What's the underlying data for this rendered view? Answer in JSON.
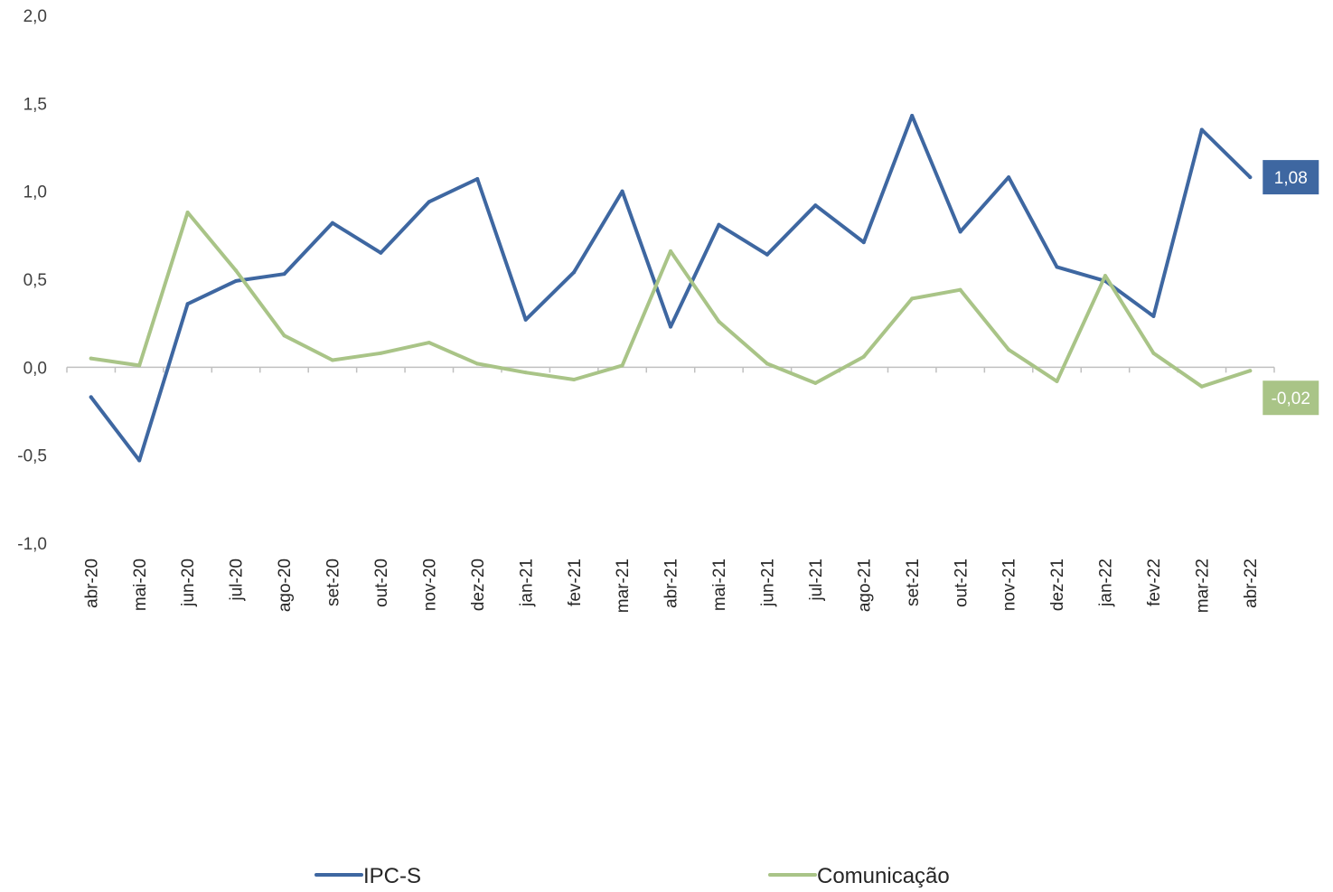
{
  "chart_data": {
    "type": "line",
    "categories": [
      "abr-20",
      "mai-20",
      "jun-20",
      "jul-20",
      "ago-20",
      "set-20",
      "out-20",
      "nov-20",
      "dez-20",
      "jan-21",
      "fev-21",
      "mar-21",
      "abr-21",
      "mai-21",
      "jun-21",
      "jul-21",
      "ago-21",
      "set-21",
      "out-21",
      "nov-21",
      "dez-21",
      "jan-22",
      "fev-22",
      "mar-22",
      "abr-22"
    ],
    "series": [
      {
        "name": "IPC-S",
        "color": "#3E67A1",
        "values": [
          -0.17,
          -0.53,
          0.36,
          0.49,
          0.53,
          0.82,
          0.65,
          0.94,
          1.07,
          0.27,
          0.54,
          1.0,
          0.23,
          0.81,
          0.64,
          0.92,
          0.71,
          1.43,
          0.77,
          1.08,
          0.57,
          0.49,
          0.29,
          1.35,
          1.08
        ]
      },
      {
        "name": "Comunicação",
        "color": "#A9C487",
        "values": [
          0.05,
          0.01,
          0.88,
          0.55,
          0.18,
          0.04,
          0.08,
          0.14,
          0.02,
          -0.03,
          -0.07,
          0.01,
          0.66,
          0.26,
          0.02,
          -0.09,
          0.06,
          0.39,
          0.44,
          0.1,
          -0.08,
          0.52,
          0.08,
          -0.11,
          -0.02
        ]
      }
    ],
    "end_labels": [
      "1,08",
      "-0,02"
    ],
    "ylim": [
      -1.0,
      2.0
    ],
    "yticks": [
      -1.0,
      -0.5,
      0.0,
      0.5,
      1.0,
      1.5,
      2.0
    ],
    "ytick_labels": [
      "-1,0",
      "-0,5",
      "0,0",
      "0,5",
      "1,0",
      "1,5",
      "2,0"
    ],
    "title": "",
    "xlabel": "",
    "ylabel": "",
    "grid": false,
    "legend_position": "bottom"
  }
}
